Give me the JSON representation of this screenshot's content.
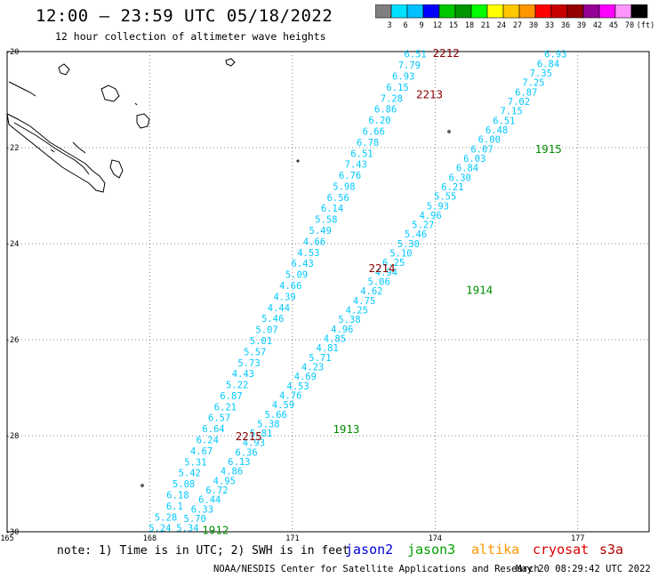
{
  "header": {
    "title": "12:00 – 23:59 UTC 05/18/2022",
    "subtitle": "12 hour collection of altimeter wave heights"
  },
  "color_scale": {
    "colors": [
      "#808080",
      "#00e0ff",
      "#00c0ff",
      "#0000ff",
      "#00c800",
      "#009600",
      "#00ff00",
      "#ffff00",
      "#ffc800",
      "#ff9600",
      "#ff0000",
      "#c80000",
      "#960000",
      "#960096",
      "#ff00ff",
      "#ff96ff",
      "#000000"
    ],
    "labels": [
      "3",
      "6",
      "9",
      "12",
      "15",
      "18",
      "21",
      "24",
      "27",
      "30",
      "33",
      "36",
      "39",
      "42",
      "45",
      "70",
      "(ft)"
    ]
  },
  "map": {
    "lon_labels": [
      "165",
      "168",
      "171",
      "174",
      "177"
    ],
    "lat_labels": [
      "-20",
      "-22",
      "-24",
      "-26",
      "-28",
      "-30"
    ],
    "track_colors": {
      "wave": "#00c8ff",
      "jason3": "#008c00",
      "cryosat": "#8c0000"
    },
    "track_west": {
      "values": [
        "6.51",
        "7.79",
        "6.93",
        "6.15",
        "7.28",
        "6.86",
        "6.20",
        "6.66",
        "6.78",
        "6.51",
        "7.43",
        "6.76",
        "5.98",
        "6.56",
        "6.14",
        "5.58",
        "5.49",
        "4.66",
        "4.53",
        "6.43",
        "5.09",
        "4.66",
        "4.39",
        "4.44",
        "5.46",
        "5.07",
        "5.01",
        "5.57",
        "5.73",
        "4.43",
        "5.22",
        "6.87",
        "6.21",
        "6.57",
        "6.64",
        "6.24",
        "4.67",
        "5.31",
        "5.42",
        "5.08",
        "6.18",
        "6.1",
        "5.28",
        "5.24"
      ],
      "start_lon": 173.82,
      "start_lat": -20.05,
      "end_lon": 168.45,
      "end_lat": -29.92
    },
    "track_east": {
      "values": [
        "6.93",
        "6.84",
        "7.35",
        "7.25",
        "6.87",
        "7.02",
        "7.15",
        "6.51",
        "6.48",
        "6.00",
        "6.07",
        "6.03",
        "6.84",
        "6.30",
        "6.21",
        "5.55",
        "5.93",
        "4.96",
        "5.27",
        "5.46",
        "5.30",
        "5.10",
        "6.25",
        "4.94",
        "5.06",
        "4.62",
        "4.75",
        "4.25",
        "5.38",
        "4.96",
        "4.85",
        "4.81",
        "5.71",
        "4.23",
        "4.69",
        "4.53",
        "4.76",
        "4.59",
        "5.66",
        "5.38",
        "5.81",
        "4.93",
        "6.36",
        "6.13",
        "4.86",
        "4.95",
        "6.72",
        "6.44",
        "6.33",
        "5.70",
        "5.34"
      ],
      "start_lon": 176.77,
      "start_lat": -20.05,
      "end_lon": 169.03,
      "end_lat": -29.92
    },
    "pass_labels": [
      {
        "text": "2212",
        "lon": 173.95,
        "lat": -20.02,
        "sat": "cryosat"
      },
      {
        "text": "2213",
        "lon": 173.6,
        "lat": -20.88,
        "sat": "cryosat"
      },
      {
        "text": "1915",
        "lon": 176.1,
        "lat": -22.02,
        "sat": "jason3"
      },
      {
        "text": "2214",
        "lon": 172.6,
        "lat": -24.5,
        "sat": "cryosat"
      },
      {
        "text": "1914",
        "lon": 174.65,
        "lat": -24.95,
        "sat": "jason3"
      },
      {
        "text": "1913",
        "lon": 171.85,
        "lat": -27.85,
        "sat": "jason3"
      },
      {
        "text": "2215",
        "lon": 169.8,
        "lat": -28.0,
        "sat": "cryosat"
      },
      {
        "text": "1912",
        "lon": 169.1,
        "lat": -29.95,
        "sat": "jason3"
      }
    ]
  },
  "note": "note: 1) Time is in UTC; 2) SWH is in feet",
  "satellites": [
    {
      "name": "jason2",
      "color": "#0000dc"
    },
    {
      "name": "jason3",
      "color": "#00a000"
    },
    {
      "name": "altika",
      "color": "#ff9600"
    },
    {
      "name": "cryosat",
      "color": "#dc0000"
    },
    {
      "name": "s3a",
      "color": "#b40000"
    }
  ],
  "footer": {
    "left": "NOAA/NESDIS Center for Satellite Applications and Research",
    "right": "May 20 08:29:42 UTC 2022"
  }
}
